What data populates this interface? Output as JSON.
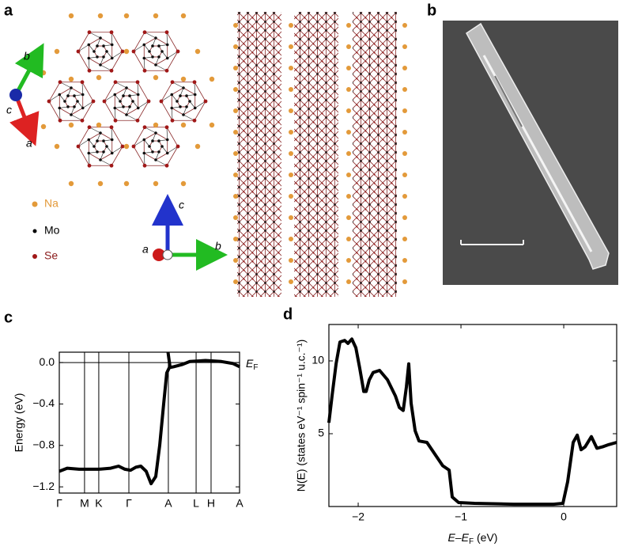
{
  "panels": {
    "a": {
      "label": "a",
      "axes_top": [
        "b",
        "c",
        "a"
      ],
      "legend": [
        "Na",
        "Mo",
        "Se"
      ],
      "axes_bottom": [
        "c",
        "a",
        "b"
      ]
    },
    "b": {
      "label": "b"
    },
    "c": {
      "label": "c"
    },
    "d": {
      "label": "d"
    }
  },
  "chart_data": [
    {
      "type": "line",
      "ylabel": "Energy (eV)",
      "xlim": [
        0,
        1
      ],
      "ylim": [
        -1.26,
        0.1
      ],
      "xticks": [
        {
          "value": 0,
          "label": "Γ"
        },
        {
          "value": 0.14,
          "label": "M"
        },
        {
          "value": 0.219,
          "label": "K"
        },
        {
          "value": 0.386,
          "label": "Γ"
        },
        {
          "value": 0.605,
          "label": "A"
        },
        {
          "value": 0.759,
          "label": "L"
        },
        {
          "value": 0.842,
          "label": "H"
        },
        {
          "value": 1,
          "label": "A"
        }
      ],
      "yticks": [
        {
          "value": 0,
          "label": "0.0"
        },
        {
          "value": -0.4,
          "label": "−0.4"
        },
        {
          "value": -0.8,
          "label": "−0.8"
        },
        {
          "value": -1.2,
          "label": "−1.2"
        }
      ],
      "xgrid": true,
      "annotation": {
        "parts": [
          "E",
          "F"
        ],
        "y": 0
      },
      "series": [
        {
          "color": "#000000",
          "x": [
            0,
            0.044,
            0.11,
            0.219,
            0.285,
            0.329,
            0.364,
            0.395,
            0.425,
            0.452,
            0.482,
            0.509,
            0.535,
            0.557,
            0.579,
            0.596,
            0.61,
            0.636,
            0.68,
            0.724,
            0.811,
            0.899,
            0.965,
            1
          ],
          "values": [
            -1.05,
            -1.02,
            -1.03,
            -1.03,
            -1.02,
            -1.0,
            -1.03,
            -1.04,
            -1.01,
            -1.0,
            -1.05,
            -1.17,
            -1.1,
            -0.8,
            -0.4,
            -0.1,
            -0.05,
            -0.04,
            -0.02,
            0.01,
            0.02,
            0.01,
            -0.01,
            -0.04
          ]
        },
        {
          "color": "#000000",
          "x": [
            0.603,
            0.615
          ],
          "values": [
            0.1,
            -0.05
          ]
        }
      ]
    },
    {
      "type": "line",
      "ylabel": "N(E) (states eV⁻¹ spin⁻¹ u.c.⁻¹)",
      "xlabel": {
        "parts": [
          "E–E",
          "F",
          " (eV)"
        ]
      },
      "xlim": [
        -2.285,
        0.515
      ],
      "ylim": [
        0,
        12.5
      ],
      "xticks": [
        {
          "value": -2,
          "label": "−2"
        },
        {
          "value": -1,
          "label": "−1"
        },
        0
      ],
      "yticks": [
        5,
        10
      ],
      "series": [
        {
          "color": "#000000",
          "x": [
            -2.285,
            -2.254,
            -2.215,
            -2.177,
            -2.131,
            -2.1,
            -2.062,
            -2.023,
            -1.985,
            -1.946,
            -1.923,
            -1.892,
            -1.854,
            -1.792,
            -1.715,
            -1.638,
            -1.6,
            -1.562,
            -1.531,
            -1.508,
            -1.485,
            -1.446,
            -1.408,
            -1.331,
            -1.254,
            -1.177,
            -1.115,
            -1.085,
            -1.023,
            -0.869,
            -0.485,
            -0.1,
            -0.008,
            0.038,
            0.092,
            0.131,
            0.169,
            0.208,
            0.269,
            0.323,
            0.377,
            0.438,
            0.515
          ],
          "values": [
            5.75,
            7.6,
            9.8,
            11.3,
            11.4,
            11.2,
            11.5,
            10.9,
            9.5,
            7.9,
            7.9,
            8.7,
            9.2,
            9.35,
            8.7,
            7.6,
            6.8,
            6.6,
            8.2,
            9.8,
            7.1,
            5.2,
            4.5,
            4.4,
            3.6,
            2.8,
            2.5,
            0.65,
            0.27,
            0.22,
            0.16,
            0.16,
            0.22,
            1.7,
            4.4,
            4.9,
            3.9,
            4.1,
            4.8,
            4.0,
            4.1,
            4.25,
            4.4
          ]
        }
      ]
    }
  ]
}
